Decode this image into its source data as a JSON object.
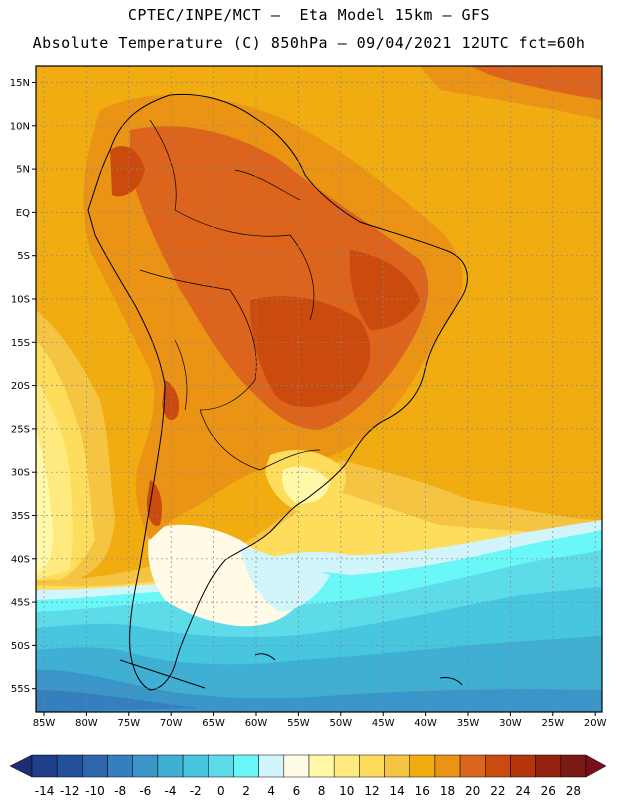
{
  "header": {
    "line1": "CPTEC/INPE/MCT –  Eta Model 15km – GFS",
    "line2": "Absolute Temperature (C) 850hPa – 09/04/2021 12UTC fct=60h"
  },
  "map": {
    "lat_labels": [
      "15N",
      "10N",
      "5N",
      "EQ",
      "5S",
      "10S",
      "15S",
      "20S",
      "25S",
      "30S",
      "35S",
      "40S",
      "45S",
      "50S",
      "55S"
    ],
    "lon_labels": [
      "85W",
      "80W",
      "75W",
      "70W",
      "65W",
      "60W",
      "55W",
      "50W",
      "45W",
      "40W",
      "35W",
      "30W",
      "25W",
      "20W"
    ]
  },
  "colorbar": {
    "labels": [
      "-14",
      "-12",
      "-10",
      "-8",
      "-6",
      "-4",
      "-2",
      "0",
      "2",
      "4",
      "6",
      "8",
      "10",
      "12",
      "14",
      "16",
      "18",
      "20",
      "22",
      "24",
      "26",
      "28"
    ],
    "colors": [
      "#1f3f8a",
      "#23509a",
      "#2e66ad",
      "#357fbe",
      "#3a96c8",
      "#3fb0d4",
      "#47c6e0",
      "#5ddbe9",
      "#6af7f7",
      "#d2f5fc",
      "#fffbe6",
      "#fff8a8",
      "#feea7e",
      "#fedc5c",
      "#f5c443",
      "#f0ac10",
      "#ea9314",
      "#dc641c",
      "#cb4b0f",
      "#b4340c",
      "#932211",
      "#7a1a14"
    ],
    "low_color": "#1c2c75",
    "high_color": "#7a0f1e"
  }
}
